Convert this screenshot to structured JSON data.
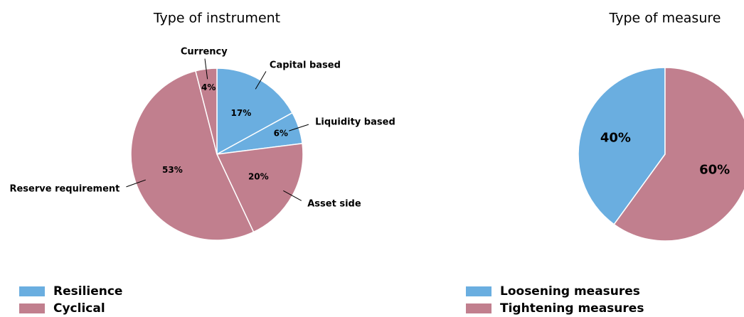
{
  "chart_data": [
    {
      "type": "pie",
      "title": "Type of instrument",
      "direction": "clockwise",
      "show_category_labels": true,
      "categories": [
        "Capital based",
        "Liquidity based",
        "Asset side",
        "Reserve requirement",
        "Currency"
      ],
      "values": [
        17,
        6,
        20,
        53,
        4
      ],
      "value_labels": [
        "17%",
        "6%",
        "20%",
        "53%",
        "4%"
      ],
      "colors": [
        "#6aaee0",
        "#6aaee0",
        "#c17f8e",
        "#c17f8e",
        "#c17f8e"
      ],
      "legend": [
        {
          "name": "Resilience",
          "color": "#6aaee0"
        },
        {
          "name": "Cyclical",
          "color": "#c17f8e"
        }
      ]
    },
    {
      "type": "pie",
      "title": "Type of measure",
      "direction": "counterclockwise",
      "show_category_labels": false,
      "categories": [
        "Loosening measures",
        "Tightening measures"
      ],
      "values": [
        40,
        60
      ],
      "value_labels": [
        "40%",
        "60%"
      ],
      "colors": [
        "#6aaee0",
        "#c17f8e"
      ],
      "legend": [
        {
          "name": "Loosening measures",
          "color": "#6aaee0"
        },
        {
          "name": "Tightening measures",
          "color": "#c17f8e"
        }
      ]
    }
  ]
}
